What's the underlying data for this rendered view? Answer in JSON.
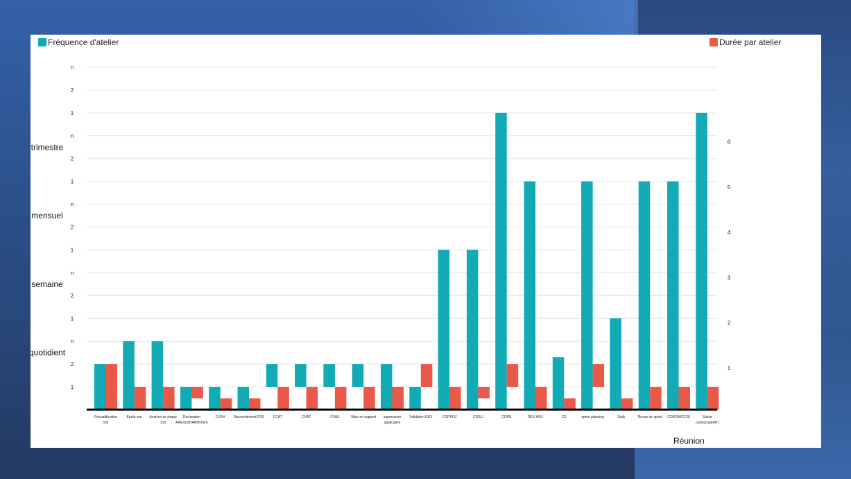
{
  "colors": {
    "frequency": "#12aab5",
    "duration": "#e8594a",
    "grid": "#e3e3e3",
    "axis": "#000000"
  },
  "chart_data": {
    "type": "bar",
    "legend": {
      "frequency_label": "Fréquence d'atelier",
      "duration_label": "Durée par atelier"
    },
    "xlabel": "Réunion",
    "left_axis": {
      "band_labels": [
        "quotidient",
        "semaine",
        "mensuel",
        "trimestre"
      ],
      "tick_labels": [
        "1",
        "2",
        "n",
        "1",
        "2",
        "n",
        "1",
        "2",
        "n",
        "1",
        "2",
        "n",
        "1",
        "2",
        "n"
      ],
      "ylim": [
        0,
        15
      ]
    },
    "right_axis": {
      "tick_labels": [
        "1",
        "2",
        "3",
        "4",
        "5",
        "6"
      ],
      "ylim": [
        0,
        6.9
      ]
    },
    "categories": [
      [
        "Précadification",
        "SSI"
      ],
      [
        "Etude zen"
      ],
      [
        "Analyse de risque",
        "SSI"
      ],
      [
        "Déclaration",
        "AREIS/SHARMONIS"
      ],
      [
        "CVSH"
      ],
      [
        "Raccordement(TID)"
      ],
      [
        "CCAT"
      ],
      [
        "CVAT"
      ],
      [
        "CVAS"
      ],
      [
        "Mise en support"
      ],
      [
        "supervision",
        "applicative"
      ],
      [
        "Validation DEX"
      ],
      [
        "COPROJ"
      ],
      [
        "COSLI"
      ],
      [
        "COPIL"
      ],
      [
        "REX ASU"
      ],
      [
        "CS"
      ],
      [
        "sprint planning"
      ],
      [
        "Daily"
      ],
      [
        "Revue de sprint"
      ],
      [
        "CODOM/CCSI"
      ],
      [
        "Suivie",
        "contractuel(AT)"
      ]
    ],
    "series": [
      {
        "key": "frequency",
        "name": "Fréquence d'atelier",
        "ranges": [
          [
            0,
            2
          ],
          [
            0,
            3
          ],
          [
            0,
            3
          ],
          [
            0,
            1
          ],
          [
            0,
            1
          ],
          [
            0,
            1
          ],
          [
            1,
            2
          ],
          [
            1,
            2
          ],
          [
            1,
            2
          ],
          [
            1,
            2
          ],
          [
            0,
            2
          ],
          [
            0,
            1
          ],
          [
            0,
            7
          ],
          [
            0,
            7
          ],
          [
            0,
            13
          ],
          [
            0,
            10
          ],
          [
            0,
            2.3
          ],
          [
            0,
            10
          ],
          [
            0,
            4
          ],
          [
            0,
            10
          ],
          [
            0,
            10
          ],
          [
            0,
            13
          ]
        ]
      },
      {
        "key": "duration",
        "name": "Durée par atelier",
        "ranges": [
          [
            0,
            2
          ],
          [
            0,
            1
          ],
          [
            0,
            1
          ],
          [
            0.5,
            1
          ],
          [
            0,
            0.5
          ],
          [
            0,
            0.5
          ],
          [
            0,
            1
          ],
          [
            0,
            1
          ],
          [
            0,
            1
          ],
          [
            0,
            1
          ],
          [
            0,
            1
          ],
          [
            1,
            2
          ],
          [
            0,
            1
          ],
          [
            0.5,
            1
          ],
          [
            1,
            2
          ],
          [
            0,
            1
          ],
          [
            0,
            0.5
          ],
          [
            1,
            2
          ],
          [
            0,
            0.5
          ],
          [
            0,
            1
          ],
          [
            0,
            1
          ],
          [
            0,
            1
          ]
        ]
      }
    ],
    "grid": true,
    "legend_placement": "top"
  }
}
